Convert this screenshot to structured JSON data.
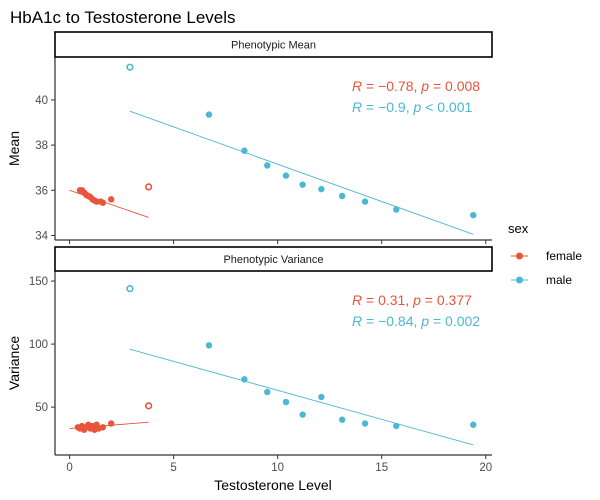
{
  "chart_data": {
    "type": "scatter",
    "title": "HbA1c to Testosterone Levels",
    "xlabel": "Testosterone Level",
    "xlim": [
      -0.7,
      20.3
    ],
    "x_ticks": [
      0,
      5,
      10,
      15,
      20
    ],
    "legend": {
      "title": "sex",
      "placement": "right",
      "entries": [
        {
          "label": "female",
          "color": "#E7553C"
        },
        {
          "label": "male",
          "color": "#4BB7D1"
        }
      ]
    },
    "grid": false,
    "panels": [
      {
        "strip": "Phenotypic Mean",
        "ylabel": "Mean",
        "ylim": [
          33.8,
          41.9
        ],
        "y_ticks": [
          34,
          36,
          38,
          40
        ],
        "series": [
          {
            "name": "female",
            "color": "#E7553C",
            "points": [
              [
                0.5,
                36.0
              ],
              [
                0.6,
                36.0
              ],
              [
                0.7,
                35.9
              ],
              [
                0.8,
                35.8
              ],
              [
                0.9,
                35.75
              ],
              [
                1.0,
                35.7
              ],
              [
                1.1,
                35.6
              ],
              [
                1.2,
                35.55
              ],
              [
                1.3,
                35.5
              ],
              [
                1.5,
                35.5
              ],
              [
                1.6,
                35.45
              ],
              [
                2.0,
                35.6
              ]
            ],
            "outliers": [
              [
                3.8,
                36.15
              ]
            ],
            "fit": [
              [
                0.0,
                36.0
              ],
              [
                3.8,
                34.8
              ]
            ],
            "stat": {
              "r": "−0.78",
              "p": "= 0.008"
            }
          },
          {
            "name": "male",
            "color": "#4BB7D1",
            "points": [
              [
                6.7,
                39.35
              ],
              [
                8.4,
                37.75
              ],
              [
                9.5,
                37.1
              ],
              [
                10.4,
                36.65
              ],
              [
                11.2,
                36.25
              ],
              [
                12.1,
                36.05
              ],
              [
                13.1,
                35.75
              ],
              [
                14.2,
                35.5
              ],
              [
                15.7,
                35.15
              ],
              [
                19.4,
                34.9
              ]
            ],
            "outliers": [
              [
                2.9,
                41.45
              ]
            ],
            "fit": [
              [
                2.9,
                39.5
              ],
              [
                19.4,
                34.05
              ]
            ],
            "stat": {
              "r": "−0.9",
              "p": "< 0.001"
            }
          }
        ]
      },
      {
        "strip": "Phenotypic Variance",
        "ylabel": "Variance",
        "ylim": [
          12,
          158
        ],
        "y_ticks": [
          50,
          100,
          150
        ],
        "series": [
          {
            "name": "female",
            "color": "#E7553C",
            "points": [
              [
                0.4,
                34
              ],
              [
                0.5,
                33
              ],
              [
                0.6,
                35
              ],
              [
                0.7,
                32
              ],
              [
                0.8,
                34
              ],
              [
                0.9,
                36
              ],
              [
                1.0,
                33
              ],
              [
                1.1,
                35
              ],
              [
                1.2,
                32
              ],
              [
                1.3,
                36
              ],
              [
                1.4,
                33
              ],
              [
                1.6,
                34
              ],
              [
                2.0,
                37
              ]
            ],
            "outliers": [
              [
                3.8,
                51
              ]
            ],
            "fit": [
              [
                0.0,
                33
              ],
              [
                3.8,
                38
              ]
            ],
            "stat": {
              "r": "0.31",
              "p": "= 0.377"
            }
          },
          {
            "name": "male",
            "color": "#4BB7D1",
            "points": [
              [
                6.7,
                99
              ],
              [
                8.4,
                72
              ],
              [
                9.5,
                62
              ],
              [
                10.4,
                54
              ],
              [
                11.2,
                44
              ],
              [
                12.1,
                58
              ],
              [
                13.1,
                40
              ],
              [
                14.2,
                37
              ],
              [
                15.7,
                35
              ],
              [
                19.4,
                36
              ]
            ],
            "outliers": [
              [
                2.9,
                144
              ]
            ],
            "fit": [
              [
                2.9,
                96
              ],
              [
                19.4,
                20
              ]
            ],
            "stat": {
              "r": "−0.84",
              "p": "= 0.002"
            }
          }
        ]
      }
    ]
  }
}
